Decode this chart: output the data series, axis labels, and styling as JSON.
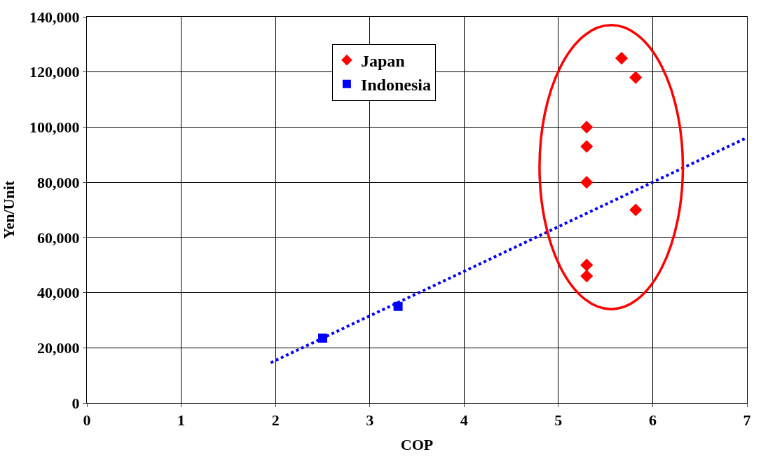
{
  "chart_data": {
    "type": "scatter",
    "xlabel": "COP",
    "ylabel": "Yen/Unit",
    "xlim": [
      0,
      7
    ],
    "xticks": [
      0,
      1,
      2,
      3,
      4,
      5,
      6,
      7
    ],
    "ylim": [
      0,
      140000
    ],
    "yticks": [
      {
        "value": 0,
        "label": "0"
      },
      {
        "value": 20000,
        "label": "20,000"
      },
      {
        "value": 40000,
        "label": "40,000"
      },
      {
        "value": 60000,
        "label": "60,000"
      },
      {
        "value": 80000,
        "label": "80,000"
      },
      {
        "value": 100000,
        "label": "100,000"
      },
      {
        "value": 120000,
        "label": "120,000"
      },
      {
        "value": 140000,
        "label": "140,000"
      }
    ],
    "grid": true,
    "legend": "top",
    "series": [
      {
        "name": "Japan",
        "color": "#ff0000",
        "marker": "diamond",
        "x": [
          5.3,
          5.3,
          5.3,
          5.3,
          5.3,
          5.67,
          5.82,
          5.82
        ],
        "values": [
          100000,
          93000,
          80000,
          50000,
          46000,
          125000,
          118000,
          70000
        ]
      },
      {
        "name": "Indonesia",
        "color": "#0000ff",
        "marker": "square",
        "x": [
          2.5,
          3.3
        ],
        "values": [
          23500,
          35000
        ]
      },
      {
        "type": "line",
        "color": "#0000ff",
        "line_style": "dotted",
        "x": [
          1.95,
          7
        ],
        "values": [
          14600,
          96200
        ]
      }
    ]
  }
}
